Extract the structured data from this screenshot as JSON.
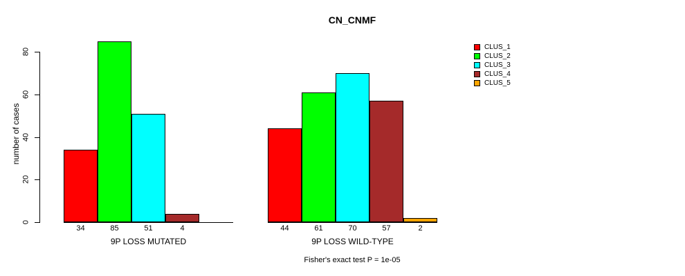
{
  "chart_data": {
    "type": "bar",
    "title": "CN_CNMF",
    "ylabel": "number of cases",
    "xlabel": "",
    "ylim": [
      0,
      85
    ],
    "yticks": [
      0,
      20,
      40,
      60,
      80
    ],
    "grid": false,
    "legend_position": "right",
    "bar_value_labels_visible": true,
    "cluster_names": [
      "CLUS_1",
      "CLUS_2",
      "CLUS_3",
      "CLUS_4",
      "CLUS_5"
    ],
    "cluster_colors": [
      "#ff0000",
      "#00ff00",
      "#00ffff",
      "#a52a2a",
      "#ffa500"
    ],
    "groups": [
      {
        "label": "9P LOSS MUTATED",
        "values": [
          34,
          85,
          51,
          4,
          null
        ]
      },
      {
        "label": "9P LOSS WILD-TYPE",
        "values": [
          44,
          61,
          70,
          57,
          2
        ]
      }
    ],
    "annotation": "Fisher's exact test P = 1e-05"
  },
  "colors": {
    "axis": "#000000",
    "text": "#000000",
    "background": "#ffffff"
  }
}
